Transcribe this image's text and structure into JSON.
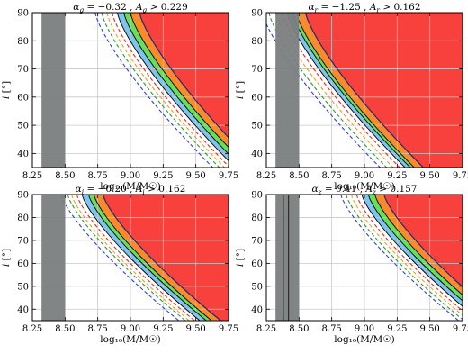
{
  "chart_data": [
    {
      "type": "area",
      "panel": "g",
      "title": "α_g = −0.32 , A_g > 0.229",
      "title_parts": {
        "alpha_sym": "α",
        "alpha_sub": "g",
        "alpha_val": " = −0.32 , ",
        "A_sym": "A",
        "A_sub": "g",
        "A_val": " > 0.229"
      },
      "xlabel": "log₁₀(M/M☉)",
      "ylabel": "i [°]",
      "xlim": [
        8.25,
        9.75
      ],
      "ylim": [
        35,
        90
      ],
      "xticks": [
        "8.25",
        "8.50",
        "8.75",
        "9.00",
        "9.25",
        "9.50",
        "9.75"
      ],
      "yticks": [
        "40",
        "50",
        "60",
        "70",
        "80",
        "90"
      ],
      "grid": true,
      "excluded_band": [
        8.32,
        8.5
      ],
      "excluded_band_lines": [],
      "dashed_curves": [
        {
          "color": "blue",
          "x90": 8.73
        },
        {
          "color": "green",
          "x90": 8.78
        },
        {
          "color": "orange",
          "x90": 8.82
        },
        {
          "color": "red",
          "x90": 8.86
        }
      ],
      "filled_curves": [
        {
          "color": "lightblue",
          "x90": 8.9
        },
        {
          "color": "lightgreen",
          "x90": 8.95
        },
        {
          "color": "orange",
          "x90": 9.0
        },
        {
          "color": "red",
          "x90": 9.07,
          "navy_edge": true
        }
      ],
      "curve_exponent": 1.3
    },
    {
      "type": "area",
      "panel": "r",
      "title": "α_r = −1.25 , A_r > 0.162",
      "title_parts": {
        "alpha_sym": "α",
        "alpha_sub": "r",
        "alpha_val": " = −1.25 , ",
        "A_sym": "A",
        "A_sub": "r",
        "A_val": " > 0.162"
      },
      "xlabel": "log₁₀(M/M☉)",
      "ylabel": "i [°]",
      "xlim": [
        8.25,
        9.75
      ],
      "ylim": [
        35,
        90
      ],
      "xticks": [
        "8.25",
        "8.50",
        "8.75",
        "9.00",
        "9.25",
        "9.50",
        "9.75"
      ],
      "yticks": [
        "40",
        "50",
        "60",
        "70",
        "80",
        "90"
      ],
      "grid": true,
      "excluded_band": [
        8.32,
        8.5
      ],
      "excluded_band_lines": [],
      "dashed_curves": [
        {
          "color": "blue",
          "x90": 8.22
        },
        {
          "color": "green",
          "x90": 8.27
        },
        {
          "color": "orange",
          "x90": 8.32
        },
        {
          "color": "red",
          "x90": 8.37
        }
      ],
      "filled_curves": [
        {
          "color": "lightblue",
          "x90": 8.41
        },
        {
          "color": "lightgreen",
          "x90": 8.45
        },
        {
          "color": "orange",
          "x90": 8.48
        },
        {
          "color": "red",
          "x90": 8.55,
          "navy_edge": true
        }
      ],
      "curve_exponent": 1.3
    },
    {
      "type": "area",
      "panel": "i",
      "title": "α_i = −0.20 , A_i > 0.162",
      "title_parts": {
        "alpha_sym": "α",
        "alpha_sub": "i",
        "alpha_val": " = −0.20 , ",
        "A_sym": "A",
        "A_sub": "i",
        "A_val": " > 0.162"
      },
      "xlabel": "log₁₀(M/M☉)",
      "ylabel": "i [°]",
      "xlim": [
        8.25,
        9.75
      ],
      "ylim": [
        35,
        90
      ],
      "xticks": [
        "8.25",
        "8.50",
        "8.75",
        "9.00",
        "9.25",
        "9.50",
        "9.75"
      ],
      "yticks": [
        "40",
        "50",
        "60",
        "70",
        "80",
        "90"
      ],
      "grid": true,
      "excluded_band": [
        8.32,
        8.5
      ],
      "excluded_band_lines": [],
      "dashed_curves": [
        {
          "color": "blue",
          "x90": 8.47
        },
        {
          "color": "green",
          "x90": 8.52
        },
        {
          "color": "orange",
          "x90": 8.55
        },
        {
          "color": "red",
          "x90": 8.59
        }
      ],
      "filled_curves": [
        {
          "color": "lightblue",
          "x90": 8.63
        },
        {
          "color": "lightgreen",
          "x90": 8.68
        },
        {
          "color": "orange",
          "x90": 8.72
        },
        {
          "color": "red",
          "x90": 8.79,
          "navy_edge": true
        }
      ],
      "curve_exponent": 1.3
    },
    {
      "type": "area",
      "panel": "z",
      "title": "α_z = 0.41 , A_z > 0.157",
      "title_parts": {
        "alpha_sym": "α",
        "alpha_sub": "z",
        "alpha_val": " = 0.41 , ",
        "A_sym": "A",
        "A_sub": "z",
        "A_val": " > 0.157"
      },
      "xlabel": "log₁₀(M/M☉)",
      "ylabel": "i [°]",
      "xlim": [
        8.25,
        9.75
      ],
      "ylim": [
        35,
        90
      ],
      "xticks": [
        "8.25",
        "8.50",
        "8.75",
        "9.00",
        "9.25",
        "9.50",
        "9.75"
      ],
      "yticks": [
        "40",
        "50",
        "60",
        "70",
        "80",
        "90"
      ],
      "grid": true,
      "excluded_band": [
        8.32,
        8.5
      ],
      "excluded_band_lines": [
        8.38,
        8.42
      ],
      "dashed_curves": [
        {
          "color": "blue",
          "x90": 8.82
        },
        {
          "color": "green",
          "x90": 8.86
        },
        {
          "color": "orange",
          "x90": 8.9
        },
        {
          "color": "red",
          "x90": 8.94
        }
      ],
      "filled_curves": [
        {
          "color": "lightblue",
          "x90": 8.98
        },
        {
          "color": "lightgreen",
          "x90": 9.03
        },
        {
          "color": "orange",
          "x90": 9.08
        },
        {
          "color": "red",
          "x90": 9.15,
          "navy_edge": true
        }
      ],
      "curve_exponent": 1.3
    }
  ],
  "colors": {
    "lightblue": "#7fc4ec",
    "lightgreen": "#66e05a",
    "orange": "#fb8a2b",
    "red": "#f8403c",
    "blue": "#2f3fe0",
    "green": "#2d9a2d",
    "dash_orange": "#f29c1a",
    "dash_red": "#e8281e",
    "band": "#7b7e7e",
    "navy": "#1e2a78",
    "grid": "#c8c8c8"
  }
}
